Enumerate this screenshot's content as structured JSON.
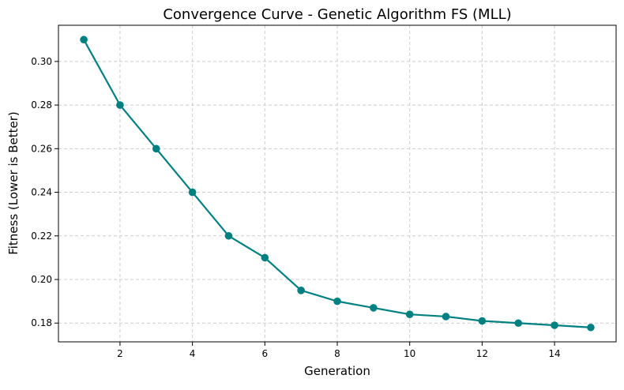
{
  "chart_data": {
    "type": "line",
    "title": "Convergence Curve - Genetic Algorithm FS (MLL)",
    "xlabel": "Generation",
    "ylabel": "Fitness (Lower is Better)",
    "xlim": [
      0.3,
      15.7
    ],
    "ylim": [
      0.1714,
      0.3166
    ],
    "x_ticks": [
      2,
      4,
      6,
      8,
      10,
      12,
      14
    ],
    "x_tick_labels": [
      "2",
      "4",
      "6",
      "8",
      "10",
      "12",
      "14"
    ],
    "y_ticks": [
      0.18,
      0.2,
      0.22,
      0.24,
      0.26,
      0.28,
      0.3
    ],
    "y_tick_labels": [
      "0.18",
      "0.20",
      "0.22",
      "0.24",
      "0.26",
      "0.28",
      "0.30"
    ],
    "grid": true,
    "series": [
      {
        "x": [
          1,
          2,
          3,
          4,
          5,
          6,
          7,
          8,
          9,
          10,
          11,
          12,
          13,
          14,
          15
        ],
        "values": [
          0.31,
          0.28,
          0.26,
          0.24,
          0.22,
          0.21,
          0.195,
          0.19,
          0.187,
          0.184,
          0.183,
          0.181,
          0.18,
          0.179,
          0.178
        ],
        "color": "#008080",
        "marker": "circle"
      }
    ]
  }
}
